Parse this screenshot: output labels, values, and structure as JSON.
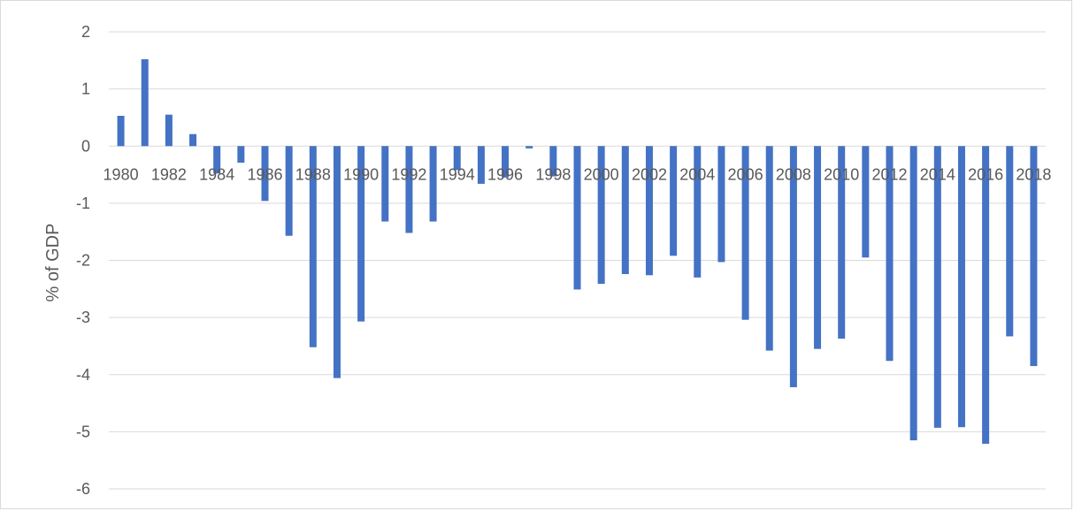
{
  "chart_data": {
    "type": "bar",
    "title": "",
    "xlabel": "",
    "ylabel": "% of GDP",
    "ylim": [
      -6,
      2
    ],
    "yticks": [
      2,
      1,
      0,
      -1,
      -2,
      -3,
      -4,
      -5,
      -6
    ],
    "grid": true,
    "legend": "none",
    "bar_color": "#4472c4",
    "grid_color": "#d9d9d9",
    "categories": [
      "1980",
      "1981",
      "1982",
      "1983",
      "1984",
      "1985",
      "1986",
      "1987",
      "1988",
      "1989",
      "1990",
      "1991",
      "1992",
      "1993",
      "1994",
      "1995",
      "1996",
      "1997",
      "1998",
      "1999",
      "2000",
      "2001",
      "2002",
      "2003",
      "2004",
      "2005",
      "2006",
      "2007",
      "2008",
      "2009",
      "2010",
      "2011",
      "2012",
      "2013",
      "2014",
      "2015",
      "2016",
      "2017",
      "2018"
    ],
    "xtick_labels": [
      "1980",
      "",
      "1982",
      "",
      "1984",
      "",
      "1986",
      "",
      "1988",
      "",
      "1990",
      "",
      "1992",
      "",
      "1994",
      "",
      "1996",
      "",
      "1998",
      "",
      "2000",
      "",
      "2002",
      "",
      "2004",
      "",
      "2006",
      "",
      "2008",
      "",
      "2010",
      "",
      "2012",
      "",
      "2014",
      "",
      "2016",
      "",
      "2018"
    ],
    "values": [
      0.53,
      1.52,
      0.55,
      0.21,
      -0.48,
      -0.29,
      -0.96,
      -1.57,
      -3.52,
      -4.06,
      -3.07,
      -1.32,
      -1.52,
      -1.32,
      -0.42,
      -0.66,
      -0.55,
      -0.04,
      -0.53,
      -2.51,
      -2.41,
      -2.24,
      -2.26,
      -1.92,
      -2.3,
      -2.03,
      -3.04,
      -3.58,
      -4.22,
      -3.55,
      -3.37,
      -1.95,
      -3.76,
      -5.15,
      -4.93,
      -4.92,
      -5.21,
      -3.33,
      -3.85
    ]
  }
}
